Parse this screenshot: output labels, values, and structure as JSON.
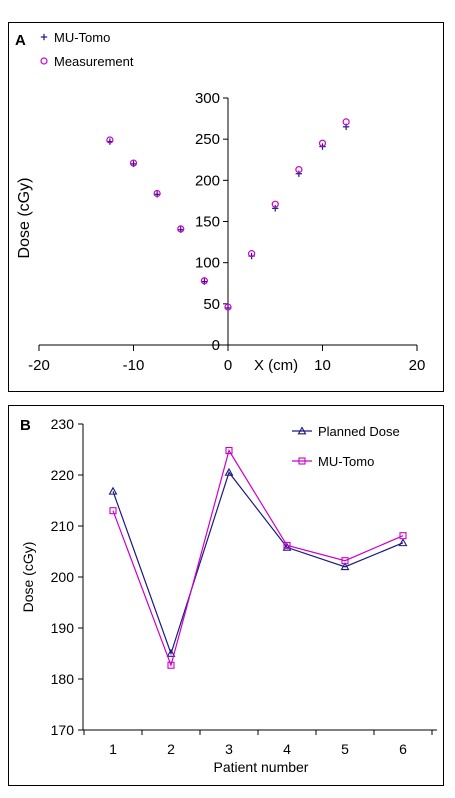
{
  "colors": {
    "series1": "#1a1a80",
    "series2": "#cc00cc",
    "axis": "#000000"
  },
  "chart_data": [
    {
      "panel_label": "A",
      "type": "scatter",
      "xlabel": "X (cm)",
      "ylabel": "Dose (cGy)",
      "xlim": [
        -20,
        20
      ],
      "ylim": [
        0,
        300
      ],
      "xticks": [
        -20,
        -10,
        0,
        10,
        20
      ],
      "yticks": [
        0,
        50,
        100,
        150,
        200,
        250,
        300
      ],
      "legend_position": "top-left",
      "grid": false,
      "series": [
        {
          "name": "MU-Tomo",
          "marker": "plus",
          "x": [
            -12.5,
            -10,
            -7.5,
            -5,
            -2.5,
            0,
            2.5,
            5,
            7.5,
            10,
            12.5
          ],
          "y": [
            247,
            220,
            183,
            140,
            77,
            45,
            108,
            166,
            208,
            241,
            265
          ]
        },
        {
          "name": "Measurement",
          "marker": "circle",
          "x": [
            -12.5,
            -10,
            -7.5,
            -5,
            -2.5,
            0,
            2.5,
            5,
            7.5,
            10,
            12.5
          ],
          "y": [
            249,
            221,
            184,
            141,
            78,
            46,
            111,
            171,
            213,
            245,
            271
          ]
        }
      ]
    },
    {
      "panel_label": "B",
      "type": "line",
      "xlabel": "Patient number",
      "ylabel": "Dose (cGy)",
      "categories": [
        "1",
        "2",
        "3",
        "4",
        "5",
        "6"
      ],
      "ylim": [
        170,
        230
      ],
      "yticks": [
        170,
        180,
        190,
        200,
        210,
        220,
        230
      ],
      "legend_position": "top-right",
      "grid": false,
      "series": [
        {
          "name": "Planned Dose",
          "marker": "triangle",
          "values": [
            216.8,
            185.0,
            220.5,
            205.8,
            202.0,
            206.7
          ]
        },
        {
          "name": "MU-Tomo",
          "marker": "square",
          "values": [
            213.0,
            182.7,
            224.8,
            206.2,
            203.2,
            208.1
          ]
        }
      ]
    }
  ]
}
